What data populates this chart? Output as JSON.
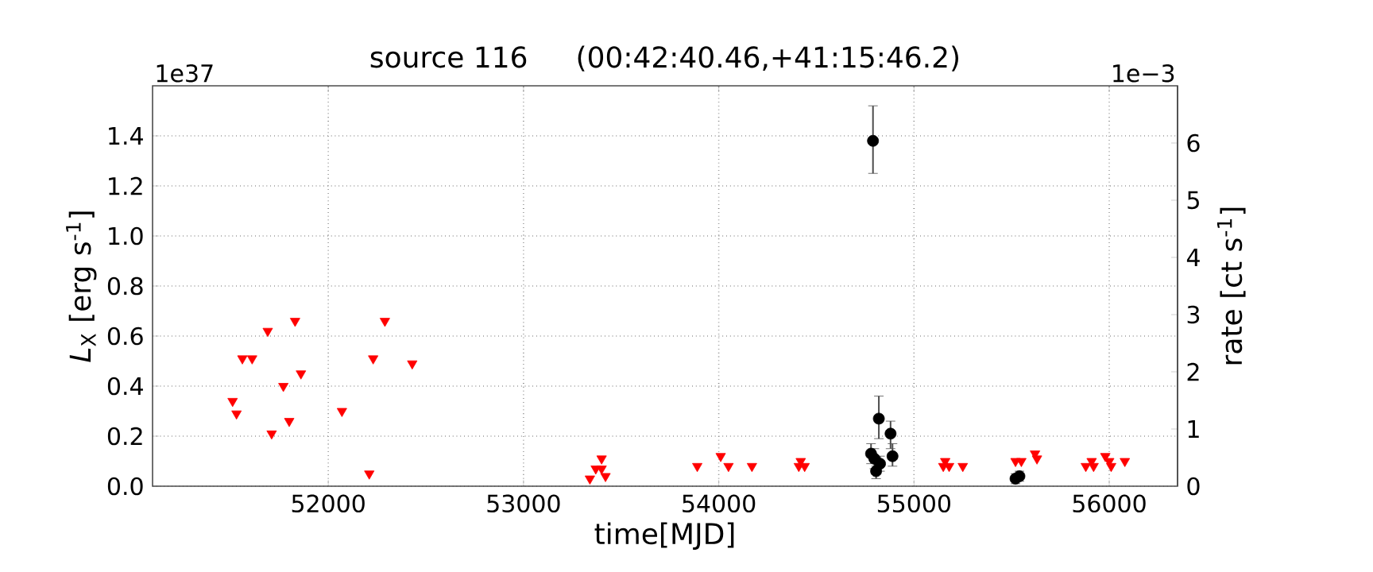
{
  "chart_data": {
    "type": "scatter",
    "title": "source 116",
    "subtitle": "(00:42:40.46,+41:15:46.2)",
    "xlabel": "time[MJD]",
    "ylabel": "*L*$_{X}$ [erg s$^{-1}$]",
    "y2label": "rate [ct s$^{-1}$]",
    "annotations": [
      "1e37",
      "1e−3"
    ],
    "xlim": [
      51100,
      56350
    ],
    "xticks": [
      52000,
      53000,
      54000,
      55000,
      56000
    ],
    "ylim": [
      0,
      1.6
    ],
    "yticks": [
      {
        "value": 0,
        "label": "0.0"
      },
      0.2,
      0.4,
      0.6,
      0.8,
      {
        "value": 1,
        "label": "1.0"
      },
      1.2,
      1.4
    ],
    "y2lim": [
      0,
      7
    ],
    "y2ticks": [
      0,
      1,
      2,
      3,
      4,
      5,
      6
    ],
    "grid": true,
    "series": [
      {
        "color": "#ff0000",
        "marker": "triangle",
        "x": [
          51510,
          51530,
          51560,
          51610,
          51690,
          51710,
          51770,
          51800,
          51830,
          51860,
          52070,
          52210,
          52230,
          52290,
          52430,
          53340,
          53370,
          53400,
          53400,
          53420,
          53890,
          54010,
          54050,
          54170,
          54410,
          54420,
          54440,
          55150,
          55160,
          55180,
          55250,
          55520,
          55550,
          55620,
          55630,
          55880,
          55910,
          55920,
          55980,
          56000,
          56010,
          56080
        ],
        "values": [
          0.34,
          0.29,
          0.51,
          0.51,
          0.62,
          0.21,
          0.4,
          0.26,
          0.66,
          0.45,
          0.3,
          0.05,
          0.51,
          0.66,
          0.49,
          0.03,
          0.07,
          0.11,
          0.07,
          0.04,
          0.08,
          0.12,
          0.08,
          0.08,
          0.08,
          0.1,
          0.08,
          0.08,
          0.1,
          0.08,
          0.08,
          0.1,
          0.1,
          0.13,
          0.11,
          0.08,
          0.1,
          0.08,
          0.12,
          0.1,
          0.08,
          0.1
        ]
      },
      {
        "color": "#000000",
        "marker": "circle",
        "x": [
          54780,
          54790,
          54797,
          54806,
          54820,
          54826,
          54880,
          54890,
          55520,
          55540
        ],
        "values": [
          0.13,
          1.38,
          0.11,
          0.06,
          0.27,
          0.09,
          0.21,
          0.12,
          0.03,
          0.04
        ],
        "errors": [
          [
            0.09,
            0.17
          ],
          [
            1.25,
            1.52
          ],
          [
            0.07,
            0.15
          ],
          [
            0.03,
            0.08
          ],
          [
            0.19,
            0.36
          ],
          [
            0.06,
            0.12
          ],
          [
            0.15,
            0.26
          ],
          [
            0.08,
            0.17
          ],
          [
            0.01,
            0.05
          ],
          [
            0.02,
            0.06
          ]
        ]
      }
    ]
  }
}
